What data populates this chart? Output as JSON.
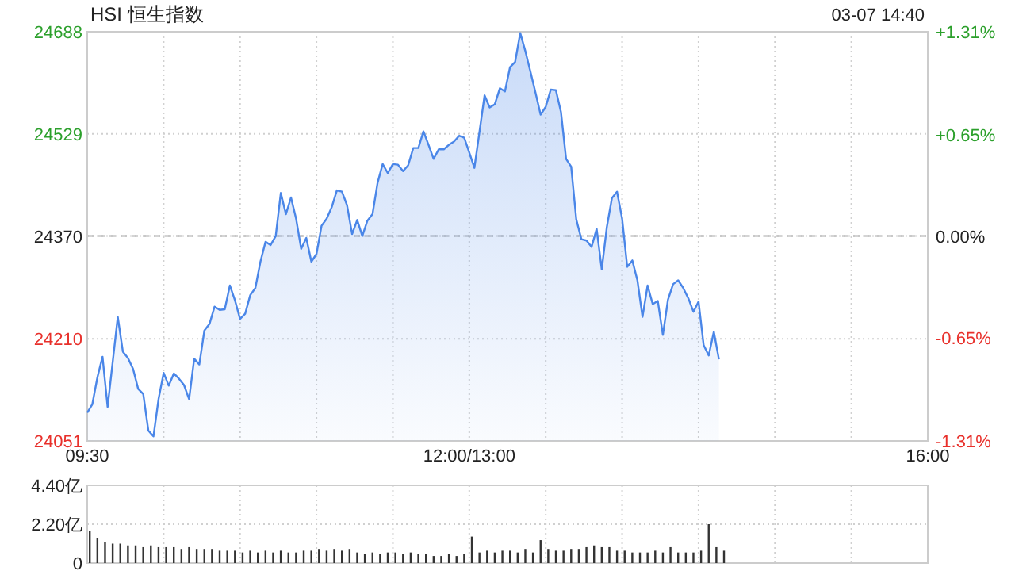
{
  "chart_data": [
    {
      "type": "area",
      "title": "HSI 恒生指数",
      "annotations": [
        "03-07 14:40"
      ],
      "color": "#4a86e8",
      "categories": [
        "09:30",
        null,
        null,
        null,
        null,
        null,
        null,
        null,
        null,
        null,
        null,
        null,
        null,
        null,
        null,
        null,
        null,
        null,
        null,
        null,
        null,
        null,
        null,
        null,
        null,
        null,
        null,
        null,
        null,
        null,
        null,
        null,
        null,
        null,
        null,
        null,
        null,
        null,
        null,
        null,
        null,
        null,
        null,
        null,
        null,
        null,
        null,
        null,
        null,
        null,
        null,
        null,
        null,
        null,
        null,
        null,
        null,
        null,
        null,
        null,
        null,
        null,
        null,
        null,
        null,
        null,
        null,
        null,
        null,
        null,
        null,
        null,
        null,
        null,
        null,
        "12:00/13:00",
        null,
        null,
        null,
        null,
        null,
        null,
        null,
        null,
        null,
        null,
        null,
        null,
        null,
        null,
        null,
        null,
        null,
        null,
        null,
        null,
        null,
        null,
        null,
        null,
        null,
        null,
        null,
        null,
        null,
        null,
        null,
        null,
        null,
        null,
        null,
        null,
        null,
        null,
        null,
        null,
        null,
        null,
        null,
        null,
        null,
        null,
        null,
        null,
        null,
        null,
        null,
        null,
        null,
        null,
        null,
        null,
        null,
        null,
        null,
        null,
        null,
        null,
        null,
        null,
        null,
        null,
        null,
        null,
        null,
        null,
        null,
        null,
        null,
        null,
        null,
        null,
        null,
        null,
        null,
        null,
        null,
        null,
        null,
        null,
        null,
        null,
        null,
        null,
        null,
        "16:00"
      ],
      "values": [
        24095,
        24108,
        24150,
        24182,
        24104,
        24174,
        24244,
        24190,
        24180,
        24163,
        24132,
        24124,
        24067,
        24058,
        24116,
        24157,
        24137,
        24156,
        24148,
        24138,
        24116,
        24179,
        24170,
        24223,
        24233,
        24260,
        24255,
        24256,
        24293,
        24270,
        24241,
        24249,
        24278,
        24289,
        24330,
        24361,
        24356,
        24370,
        24437,
        24404,
        24430,
        24397,
        24350,
        24367,
        24330,
        24342,
        24386,
        24397,
        24415,
        24441,
        24439,
        24418,
        24373,
        24395,
        24370,
        24394,
        24404,
        24453,
        24482,
        24468,
        24482,
        24481,
        24471,
        24480,
        24507,
        24507,
        24533,
        24512,
        24490,
        24505,
        24505,
        24512,
        24517,
        24526,
        24523,
        24500,
        24476,
        24532,
        24589,
        24570,
        24575,
        24600,
        24595,
        24633,
        24641,
        24686,
        24658,
        24626,
        24593,
        24559,
        24571,
        24598,
        24597,
        24563,
        24490,
        24478,
        24396,
        24365,
        24363,
        24353,
        24381,
        24318,
        24384,
        24429,
        24439,
        24397,
        24322,
        24332,
        24301,
        24244,
        24293,
        24264,
        24269,
        24216,
        24271,
        24295,
        24301,
        24289,
        24273,
        24252,
        24268,
        24200,
        24184,
        24221,
        24178,
        null,
        null,
        null,
        null,
        null,
        null,
        null,
        null,
        null,
        null,
        null,
        null,
        null,
        null,
        null,
        null,
        null,
        null,
        null,
        null,
        null,
        null,
        null,
        null,
        null,
        null,
        null,
        null,
        null,
        null,
        null,
        null,
        null,
        null,
        null,
        null,
        null,
        null,
        null,
        null,
        null
      ],
      "ylim": [
        24051,
        24688
      ],
      "yticks": [
        24051,
        24210,
        24370,
        24529,
        24688
      ],
      "y2lim": [
        -1.31,
        1.31
      ],
      "y2ticks": [
        {
          "value": -1.31,
          "label": "-1.31%"
        },
        {
          "value": -0.65,
          "label": "-0.65%"
        },
        {
          "value": 0,
          "label": "0.00%"
        },
        {
          "value": 0.65,
          "label": "+0.65%"
        },
        {
          "value": 1.31,
          "label": "+1.31%"
        }
      ],
      "ref_lines": [
        {
          "axis": "y",
          "value": 24370,
          "line_style": "dashed",
          "color": "#aaaaaa"
        }
      ],
      "grid": true
    },
    {
      "type": "bar",
      "color": "#333333",
      "tick_labels": "y",
      "grid": true,
      "categories": [
        null,
        null,
        null,
        null,
        null,
        null,
        null,
        null,
        null,
        null,
        null,
        null,
        null,
        null,
        null,
        null,
        null,
        null,
        null,
        null,
        null,
        null,
        null,
        null,
        null,
        null,
        null,
        null,
        null,
        null,
        null,
        null,
        null,
        null,
        null,
        null,
        null,
        null,
        null,
        null,
        null,
        null,
        null,
        null,
        null,
        null,
        null,
        null,
        null,
        null,
        null,
        null,
        null,
        null,
        null,
        null,
        null,
        null,
        null,
        null,
        null,
        null,
        null,
        null,
        null,
        null,
        null,
        null,
        null,
        null,
        null,
        null,
        null,
        null,
        null,
        null,
        null,
        null,
        null,
        null,
        null,
        null,
        null,
        null,
        null,
        null,
        null,
        null,
        null,
        null,
        null,
        null,
        null,
        null,
        null,
        null,
        null,
        null,
        null,
        null,
        null,
        null,
        null,
        null,
        null,
        null,
        null,
        null,
        null,
        null,
        null
      ],
      "values": [
        1.8,
        1.4,
        1.2,
        1.1,
        1.1,
        1.0,
        1.0,
        0.9,
        1.0,
        0.9,
        0.9,
        0.9,
        0.8,
        0.9,
        0.8,
        0.8,
        0.8,
        0.7,
        0.7,
        0.7,
        0.6,
        0.7,
        0.6,
        0.7,
        0.6,
        0.7,
        0.6,
        0.6,
        0.7,
        0.7,
        0.8,
        0.7,
        0.8,
        0.7,
        0.8,
        0.6,
        0.5,
        0.6,
        0.5,
        0.6,
        0.6,
        0.5,
        0.6,
        0.5,
        0.5,
        0.4,
        0.4,
        0.5,
        0.4,
        0.5,
        1.5,
        0.6,
        0.7,
        0.6,
        0.7,
        0.7,
        0.6,
        0.8,
        0.6,
        1.3,
        0.8,
        0.7,
        0.7,
        0.8,
        0.8,
        0.9,
        1.0,
        0.9,
        0.9,
        0.7,
        0.7,
        0.6,
        0.6,
        0.6,
        0.7,
        0.6,
        0.9,
        0.6,
        0.6,
        0.6,
        0.7,
        2.2,
        0.9,
        0.7,
        null,
        null,
        null,
        null,
        null,
        null,
        null,
        null,
        null,
        null,
        null,
        null,
        null,
        null,
        null,
        null,
        null,
        null,
        null,
        null,
        null,
        null,
        null,
        null,
        null,
        null,
        null
      ],
      "ylim": [
        0,
        4.4
      ],
      "yticks": [
        {
          "value": 0,
          "label": "0"
        },
        {
          "value": 2.2,
          "label": "2.20亿"
        },
        {
          "value": 4.4,
          "label": "4.40亿"
        }
      ]
    }
  ]
}
